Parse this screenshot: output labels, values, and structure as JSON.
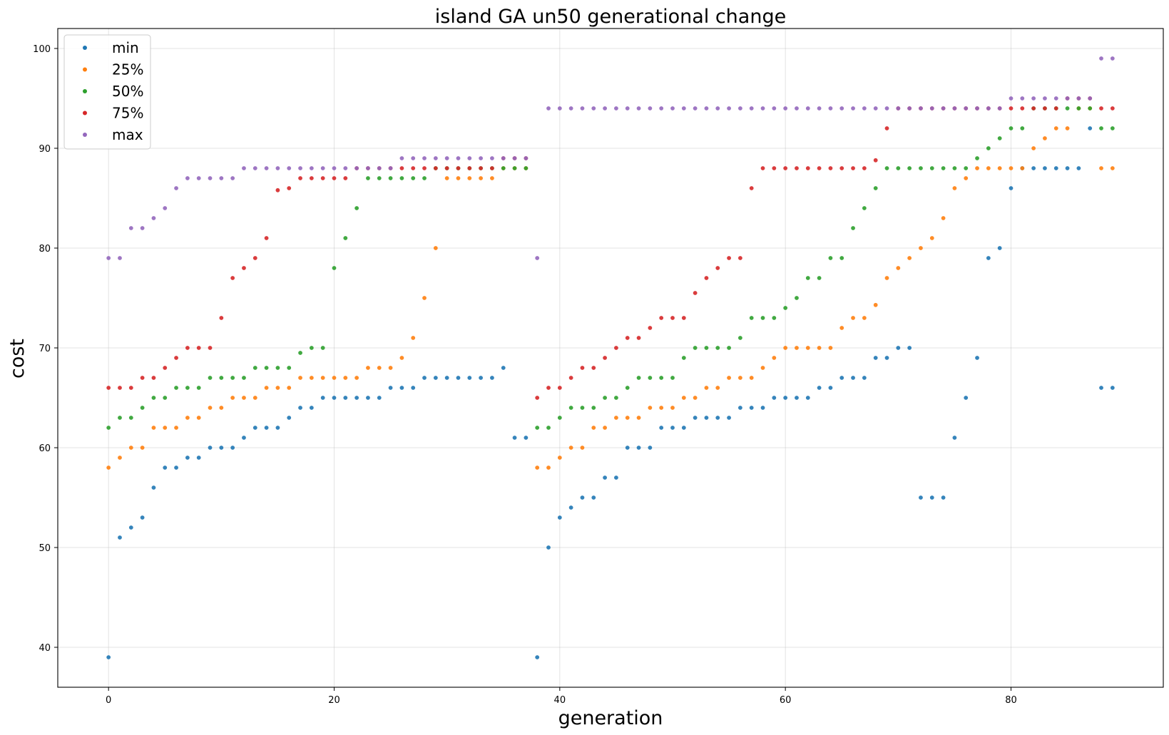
{
  "chart_data": {
    "type": "scatter",
    "title": "island GA un50 generational change",
    "xlabel": "generation",
    "ylabel": "cost",
    "xlim": [
      -4.5,
      93.5
    ],
    "ylim": [
      36,
      102
    ],
    "xticks": [
      0,
      20,
      40,
      60,
      80
    ],
    "yticks": [
      40,
      50,
      60,
      70,
      80,
      90,
      100
    ],
    "grid": true,
    "legend_position": "upper-left",
    "x": [
      0,
      1,
      2,
      3,
      4,
      5,
      6,
      7,
      8,
      9,
      10,
      11,
      12,
      13,
      14,
      15,
      16,
      17,
      18,
      19,
      20,
      21,
      22,
      23,
      24,
      25,
      26,
      27,
      28,
      29,
      30,
      31,
      32,
      33,
      34,
      35,
      36,
      37,
      38,
      39,
      40,
      41,
      42,
      43,
      44,
      45,
      46,
      47,
      48,
      49,
      50,
      51,
      52,
      53,
      54,
      55,
      56,
      57,
      58,
      59,
      60,
      61,
      62,
      63,
      64,
      65,
      66,
      67,
      68,
      69,
      70,
      71,
      72,
      73,
      74,
      75,
      76,
      77,
      78,
      79,
      80,
      81,
      82,
      83,
      84,
      85,
      86,
      87,
      88,
      89
    ],
    "series": [
      {
        "name": "min",
        "color": "#1f77b4",
        "values": [
          39,
          51,
          52,
          53,
          56,
          58,
          58,
          59,
          59,
          60,
          60,
          60,
          61,
          62,
          62,
          62,
          63,
          64,
          64,
          65,
          65,
          65,
          65,
          65,
          65,
          66,
          66,
          66,
          67,
          67,
          67,
          67,
          67,
          67,
          67,
          68,
          61,
          61,
          39,
          50,
          53,
          54,
          55,
          55,
          57,
          57,
          60,
          60,
          60,
          62,
          62,
          62,
          63,
          63,
          63,
          63,
          64,
          64,
          64,
          65,
          65,
          65,
          65,
          66,
          66,
          67,
          67,
          67,
          69,
          69,
          70,
          70,
          55,
          55,
          55,
          61,
          65,
          69,
          79,
          80,
          86,
          88,
          88,
          88,
          88,
          88,
          88,
          92,
          66,
          66
        ]
      },
      {
        "name": "25%",
        "color": "#ff7f0e",
        "values": [
          58,
          59,
          60,
          60,
          62,
          62,
          62,
          63,
          63,
          64,
          64,
          65,
          65,
          65,
          66,
          66,
          66,
          67,
          67,
          67,
          67,
          67,
          67,
          68,
          68,
          68,
          69,
          71,
          75,
          80,
          87,
          87,
          87,
          87,
          87,
          88,
          88,
          88,
          58,
          58,
          59,
          60,
          60,
          62,
          62,
          63,
          63,
          63,
          64,
          64,
          64,
          65,
          65,
          66,
          66,
          67,
          67,
          67,
          68,
          69,
          70,
          70,
          70,
          70,
          70,
          72,
          73,
          73,
          74.3,
          77,
          78,
          79,
          80,
          81,
          83,
          86,
          87,
          88,
          88,
          88,
          88,
          88,
          90,
          91,
          92,
          92,
          94,
          94,
          88,
          88
        ]
      },
      {
        "name": "50%",
        "color": "#2ca02c",
        "values": [
          62,
          63,
          63,
          64,
          65,
          65,
          66,
          66,
          66,
          67,
          67,
          67,
          67,
          68,
          68,
          68,
          68,
          69.5,
          70,
          70,
          78,
          81,
          84,
          87,
          87,
          87,
          87,
          87,
          87,
          88,
          88,
          88,
          88,
          88,
          88,
          88,
          88,
          88,
          62,
          62,
          63,
          64,
          64,
          64,
          65,
          65,
          66,
          67,
          67,
          67,
          67,
          69,
          70,
          70,
          70,
          70,
          71,
          73,
          73,
          73,
          74,
          75,
          77,
          77,
          79,
          79,
          82,
          84,
          86,
          88,
          88,
          88,
          88,
          88,
          88,
          88,
          88,
          89,
          90,
          91,
          92,
          92,
          94,
          94,
          94,
          94,
          94,
          94,
          92,
          92
        ]
      },
      {
        "name": "75%",
        "color": "#d62728",
        "values": [
          66,
          66,
          66,
          67,
          67,
          68,
          69,
          70,
          70,
          70,
          73,
          77,
          78,
          79,
          81,
          85.8,
          86,
          87,
          87,
          87,
          87,
          87,
          88,
          88,
          88,
          88,
          88,
          88,
          88,
          88,
          88,
          88,
          88,
          88,
          88,
          89,
          89,
          89,
          65,
          66,
          66,
          67,
          68,
          68,
          69,
          70,
          71,
          71,
          72,
          73,
          73,
          73,
          75.5,
          77,
          78,
          79,
          79,
          86,
          88,
          88,
          88,
          88,
          88,
          88,
          88,
          88,
          88,
          88,
          88.8,
          92,
          94,
          94,
          94,
          94,
          94,
          94,
          94,
          94,
          94,
          94,
          94,
          94,
          94,
          94,
          94,
          95,
          95,
          95,
          94,
          94
        ]
      },
      {
        "name": "max",
        "color": "#9467bd",
        "values": [
          79,
          79,
          82,
          82,
          83,
          84,
          86,
          87,
          87,
          87,
          87,
          87,
          88,
          88,
          88,
          88,
          88,
          88,
          88,
          88,
          88,
          88,
          88,
          88,
          88,
          88,
          89,
          89,
          89,
          89,
          89,
          89,
          89,
          89,
          89,
          89,
          89,
          89,
          79,
          94,
          94,
          94,
          94,
          94,
          94,
          94,
          94,
          94,
          94,
          94,
          94,
          94,
          94,
          94,
          94,
          94,
          94,
          94,
          94,
          94,
          94,
          94,
          94,
          94,
          94,
          94,
          94,
          94,
          94,
          94,
          94,
          94,
          94,
          94,
          94,
          94,
          94,
          94,
          94,
          94,
          95,
          95,
          95,
          95,
          95,
          95,
          95,
          95,
          99,
          99
        ]
      }
    ]
  }
}
